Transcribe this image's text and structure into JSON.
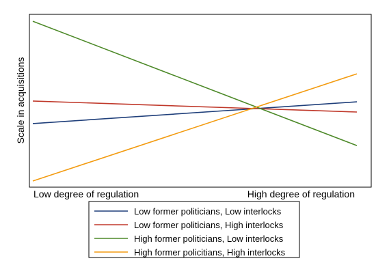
{
  "chart_data": {
    "type": "line",
    "title": "",
    "xlabel": "",
    "ylabel": "Scale in acquisitions",
    "categories": [
      "Low degree of regulation",
      "High degree of regulation"
    ],
    "ylim": [
      0,
      100
    ],
    "grid": false,
    "legend_position": "bottom",
    "series": [
      {
        "name": "Low former politicians, Low interlocks",
        "color": "#1f3f7a",
        "values": [
          35.5,
          48.9
        ]
      },
      {
        "name": "Low former politicians, High interlocks",
        "color": "#c0392b",
        "values": [
          49.4,
          42.6
        ]
      },
      {
        "name": "High former politicians, Low interlocks",
        "color": "#4e8a2a",
        "values": [
          98.7,
          21.9
        ]
      },
      {
        "name": "High former policitians, High interlocks",
        "color": "#f39c12",
        "values": [
          0.0,
          66.2
        ]
      }
    ]
  }
}
